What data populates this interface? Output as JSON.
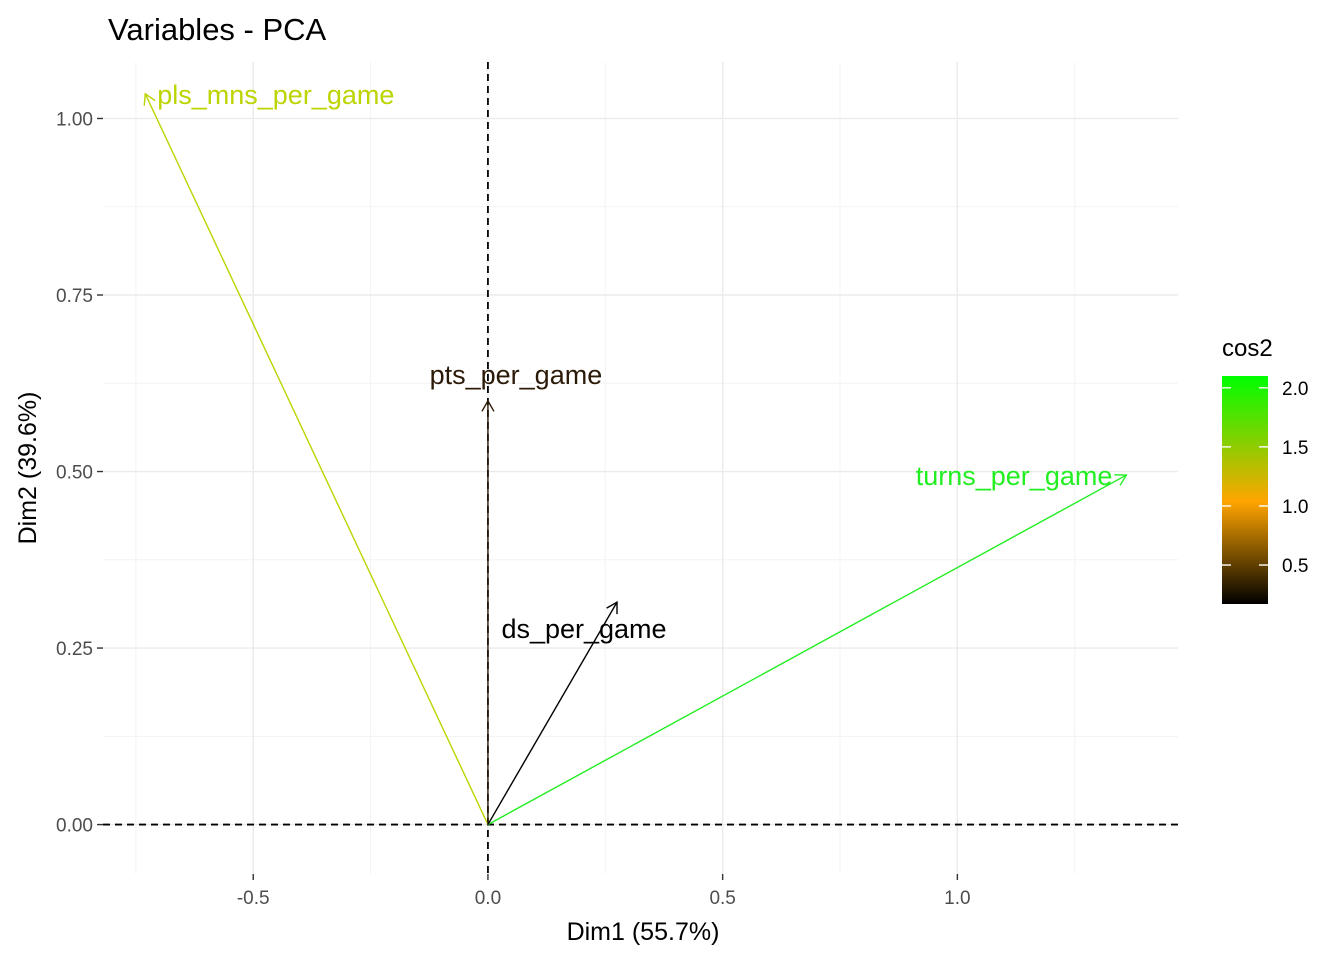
{
  "chart_data": {
    "type": "scatter",
    "subtype": "pca-variable-arrows",
    "title": "Variables - PCA",
    "xlabel": "Dim1 (55.7%)",
    "ylabel": "Dim2 (39.6%)",
    "xlim": [
      -0.82,
      1.47
    ],
    "ylim": [
      -0.07,
      1.08
    ],
    "x_ticks": [
      -0.5,
      0.0,
      0.5,
      1.0
    ],
    "x_tick_labels": [
      "-0.5",
      "0.0",
      "0.5",
      "1.0"
    ],
    "y_ticks": [
      0.0,
      0.25,
      0.5,
      0.75,
      1.0
    ],
    "y_tick_labels": [
      "0.00",
      "0.25",
      "0.50",
      "0.75",
      "1.00"
    ],
    "grid": true,
    "reference_lines": {
      "x": 0,
      "y": 0,
      "style": "dashed"
    },
    "variables": [
      {
        "name": "pls_mns_per_game",
        "x": -0.73,
        "y": 1.035,
        "cos2": 1.6,
        "color": "#bcd400"
      },
      {
        "name": "pts_per_game",
        "x": 0.0,
        "y": 0.6,
        "cos2": 0.36,
        "color": "#2b1a08"
      },
      {
        "name": "turns_per_game",
        "x": 1.36,
        "y": 0.495,
        "cos2": 2.1,
        "color": "#22ee22"
      },
      {
        "name": "ds_per_game",
        "x": 0.275,
        "y": 0.315,
        "cos2": 0.17,
        "color": "#000000"
      }
    ],
    "legend": {
      "title": "cos2",
      "position": "right",
      "range": [
        0.17,
        2.1
      ],
      "ticks": [
        0.5,
        1.0,
        1.5,
        2.0
      ],
      "tick_labels": [
        "0.5",
        "1.0",
        "1.5",
        "2.0"
      ],
      "gradient": [
        "#000000",
        "#ffa500",
        "#00ff00"
      ]
    }
  }
}
